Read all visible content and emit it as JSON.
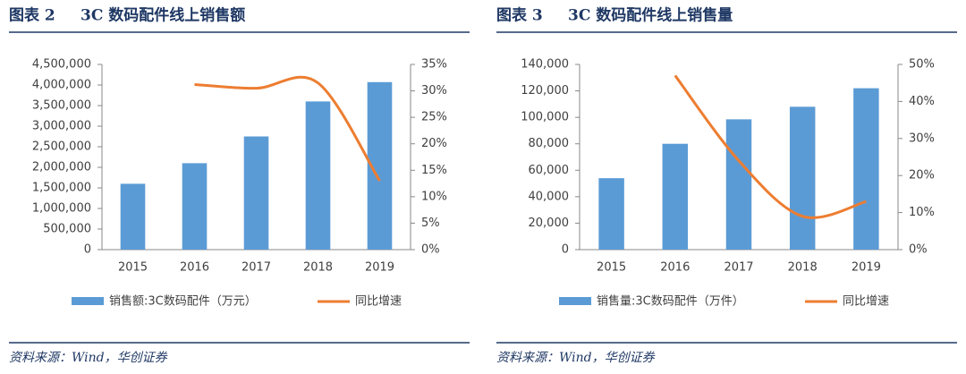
{
  "chart_data": [
    {
      "type": "bar_line",
      "figure_label": "图表 2",
      "title": "3C 数码配件线上销售额",
      "categories": [
        "2015",
        "2016",
        "2017",
        "2018",
        "2019"
      ],
      "series": [
        {
          "name": "销售额:3C数码配件（万元）",
          "color": "#5b9bd5",
          "type": "bar",
          "values": [
            1600000,
            2100000,
            2750000,
            3600000,
            4070000
          ]
        },
        {
          "name": "同比增速",
          "color": "#ed7d31",
          "type": "line",
          "axis": "y2",
          "values": [
            null,
            31.2,
            30.5,
            31.5,
            13
          ]
        }
      ],
      "ylim": [
        0,
        4500000
      ],
      "yticks": [
        0,
        {
          "value": 500000,
          "label": "500,000"
        },
        {
          "value": 1000000,
          "label": "1,000,000"
        },
        {
          "value": 1500000,
          "label": "1,500,000"
        },
        {
          "value": 2000000,
          "label": "2,000,000"
        },
        {
          "value": 2500000,
          "label": "2,500,000"
        },
        {
          "value": 3000000,
          "label": "3,000,000"
        },
        {
          "value": 3500000,
          "label": "3,500,000"
        },
        {
          "value": 4000000,
          "label": "4,000,000"
        },
        {
          "value": 4500000,
          "label": "4,500,000"
        }
      ],
      "y2lim": [
        0,
        35
      ],
      "y2ticks": [
        {
          "value": 0,
          "label": "0%"
        },
        {
          "value": 5,
          "label": "5%"
        },
        {
          "value": 10,
          "label": "10%"
        },
        {
          "value": 15,
          "label": "15%"
        },
        {
          "value": 20,
          "label": "20%"
        },
        {
          "value": 25,
          "label": "25%"
        },
        {
          "value": 30,
          "label": "30%"
        },
        {
          "value": 35,
          "label": "35%"
        }
      ],
      "source": "资料来源：Wind，华创证券"
    },
    {
      "type": "bar_line",
      "figure_label": "图表 3",
      "title": "3C 数码配件线上销售量",
      "categories": [
        "2015",
        "2016",
        "2017",
        "2018",
        "2019"
      ],
      "series": [
        {
          "name": "销售量:3C数码配件（万件）",
          "color": "#5b9bd5",
          "type": "bar",
          "values": [
            54000,
            80000,
            98500,
            108000,
            122000
          ]
        },
        {
          "name": "同比增速",
          "color": "#ed7d31",
          "type": "line",
          "axis": "y2",
          "values": [
            null,
            47,
            24,
            9,
            13
          ]
        }
      ],
      "ylim": [
        0,
        140000
      ],
      "yticks": [
        0,
        {
          "value": 20000,
          "label": "20,000"
        },
        {
          "value": 40000,
          "label": "40,000"
        },
        {
          "value": 60000,
          "label": "60,000"
        },
        {
          "value": 80000,
          "label": "80,000"
        },
        {
          "value": 100000,
          "label": "100,000"
        },
        {
          "value": 120000,
          "label": "120,000"
        },
        {
          "value": 140000,
          "label": "140,000"
        }
      ],
      "y2lim": [
        0,
        50
      ],
      "y2ticks": [
        {
          "value": 0,
          "label": "0%"
        },
        {
          "value": 10,
          "label": "10%"
        },
        {
          "value": 20,
          "label": "20%"
        },
        {
          "value": 30,
          "label": "30%"
        },
        {
          "value": 40,
          "label": "40%"
        },
        {
          "value": 50,
          "label": "50%"
        }
      ],
      "source": "资料来源：Wind，华创证券"
    }
  ]
}
